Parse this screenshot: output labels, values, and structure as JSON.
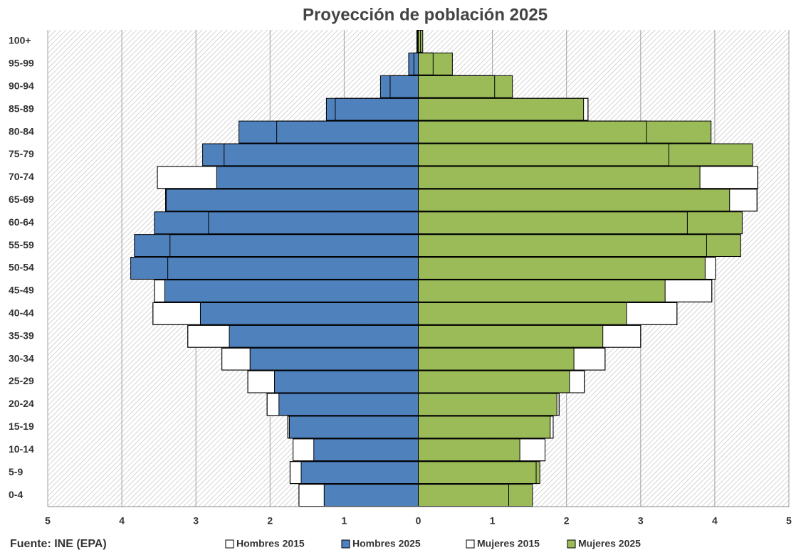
{
  "chart_data": {
    "type": "bar",
    "orientation": "horizontal",
    "title": "Proyección de población 2025",
    "source": "Fuente: INE (EPA)",
    "categories": [
      "0-4",
      "5-9",
      "10-14",
      "15-19",
      "20-24",
      "25-29",
      "30-34",
      "35-39",
      "40-44",
      "45-49",
      "50-54",
      "55-59",
      "60-64",
      "65-69",
      "70-74",
      "75-79",
      "80-84",
      "85-89",
      "90-94",
      "95-99",
      "100+"
    ],
    "series": [
      {
        "name": "Hombres 2015",
        "color": "#ffffff",
        "side": "left",
        "values": [
          1.61,
          1.73,
          1.69,
          1.76,
          2.04,
          2.3,
          2.65,
          3.11,
          3.58,
          3.56,
          3.38,
          3.35,
          2.83,
          3.41,
          3.52,
          2.62,
          1.91,
          1.12,
          0.38,
          0.06,
          0.01
        ]
      },
      {
        "name": "Hombres 2025",
        "color": "#4f81bd",
        "side": "left",
        "values": [
          1.27,
          1.58,
          1.41,
          1.74,
          1.88,
          1.94,
          2.27,
          2.55,
          2.94,
          3.42,
          3.88,
          3.83,
          3.56,
          3.4,
          2.72,
          2.91,
          2.42,
          1.24,
          0.51,
          0.13,
          0.02
        ]
      },
      {
        "name": "Mujeres 2015",
        "color": "#ffffff",
        "side": "right",
        "values": [
          1.22,
          1.59,
          1.71,
          1.82,
          1.9,
          2.24,
          2.52,
          3.0,
          3.49,
          3.96,
          4.01,
          3.89,
          3.63,
          4.57,
          4.58,
          3.38,
          3.08,
          2.29,
          1.03,
          0.2,
          0.03
        ]
      },
      {
        "name": "Mujeres 2025",
        "color": "#9bbb59",
        "side": "right",
        "values": [
          1.54,
          1.64,
          1.37,
          1.78,
          1.87,
          2.04,
          2.1,
          2.49,
          2.81,
          3.33,
          3.87,
          4.35,
          4.37,
          4.2,
          3.8,
          4.51,
          3.95,
          2.23,
          1.27,
          0.46,
          0.06
        ]
      }
    ],
    "xlim": [
      -5,
      5
    ],
    "xticks": [
      {
        "value": -5,
        "label": "5"
      },
      {
        "value": -4,
        "label": "4"
      },
      {
        "value": -3,
        "label": "3"
      },
      {
        "value": -2,
        "label": "2"
      },
      {
        "value": -1,
        "label": "1"
      },
      0,
      1,
      2,
      3,
      4,
      5
    ],
    "grid": true
  }
}
